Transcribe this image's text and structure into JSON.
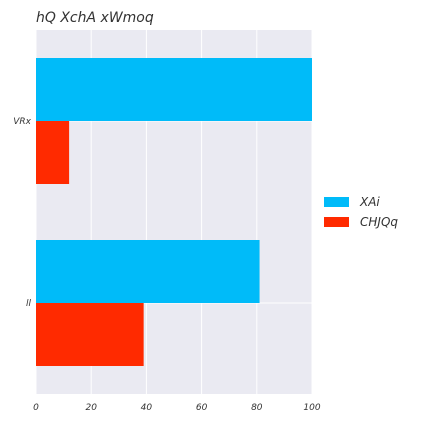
{
  "chart_data": {
    "type": "bar",
    "orientation": "horizontal",
    "title": "hQ XchA xWmoq",
    "xlabel": "",
    "ylabel": "",
    "categories": [
      "VRx",
      "ll"
    ],
    "series": [
      {
        "name": "XAi",
        "values": [
          100,
          81
        ],
        "color": "#00bbf9"
      },
      {
        "name": "CHJQq",
        "values": [
          12,
          39
        ],
        "color": "#ff2a00"
      }
    ],
    "xlim": [
      0,
      100
    ],
    "xticks": [
      0,
      20,
      40,
      60,
      80,
      100
    ],
    "grid": true,
    "legend_position": "right",
    "plot_background": "#eaeaf2"
  }
}
